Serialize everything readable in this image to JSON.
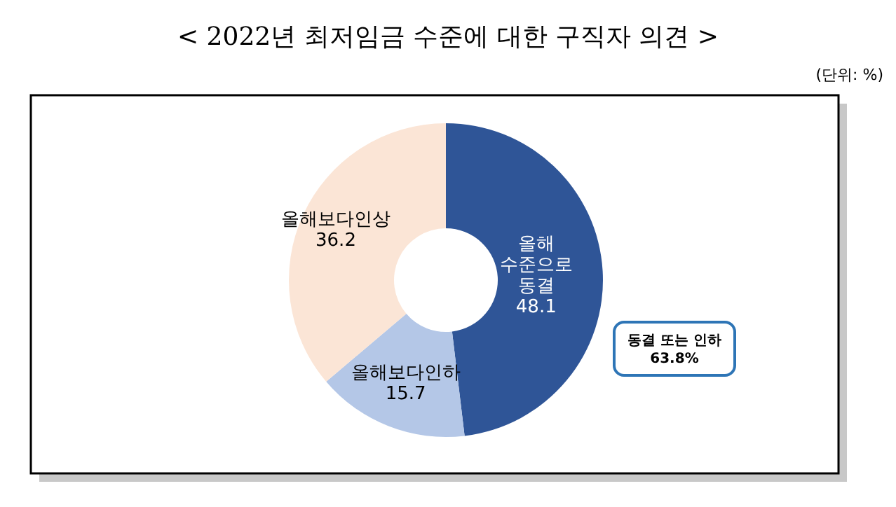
{
  "chart_data": {
    "type": "donut",
    "title": "< 2022년 최저임금 수준에 대한 구직자 의견 >",
    "categories": [
      "올해 수준으로 동결",
      "올해보다인하",
      "올해보다인상"
    ],
    "values": [
      48.1,
      15.7,
      36.2
    ],
    "colors": [
      "#2f5597",
      "#b4c7e7",
      "#fbe5d6"
    ],
    "data_labels": true,
    "annotations": [
      "(단위: %)",
      "동결 또는 인하 63.8%"
    ]
  }
}
